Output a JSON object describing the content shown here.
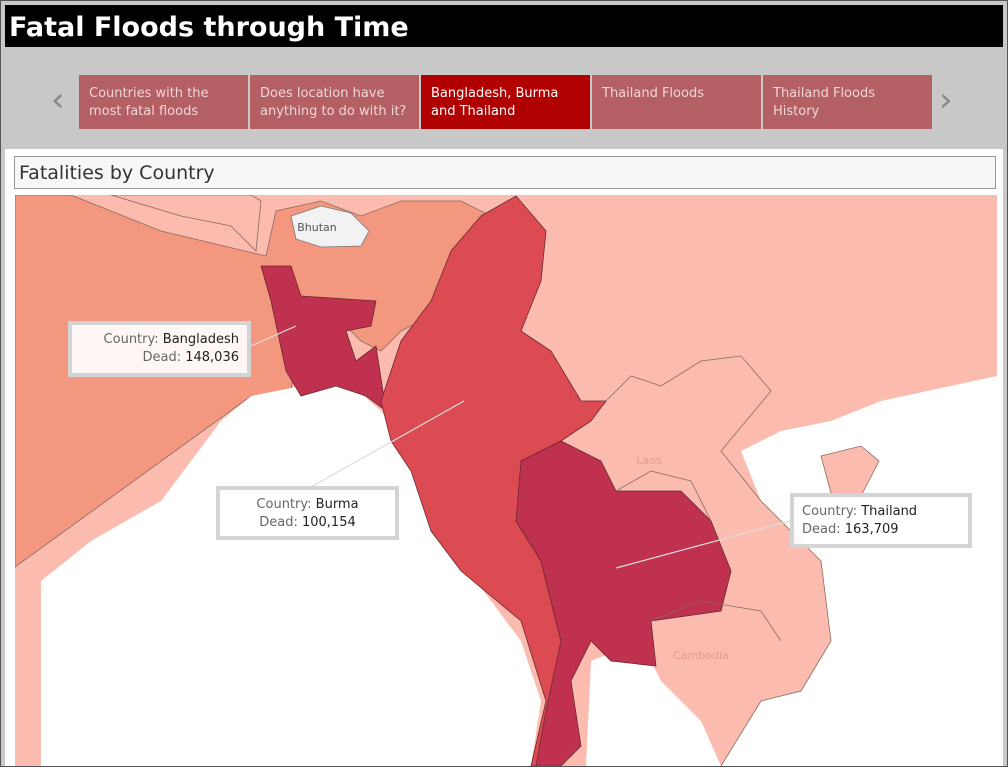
{
  "header": {
    "title": "Fatal Floods through Time"
  },
  "story": {
    "points": [
      "Countries with the most fatal floods",
      "Does location have anything to do with it?",
      "Bangladesh, Burma and Thailand",
      "Thailand Floods",
      "Thailand Floods History"
    ],
    "active": 2
  },
  "sheet": {
    "title": "Fatalities by Country"
  },
  "map": {
    "labels": [
      "Bhutan",
      "Laos",
      "Cambodia"
    ],
    "tooltips": [
      {
        "country_label": "Country:",
        "country": "Bangladesh",
        "dead_label": "Dead:",
        "dead": "148,036"
      },
      {
        "country_label": "Country:",
        "country": "Burma",
        "dead_label": "Dead:",
        "dead": "100,154"
      },
      {
        "country_label": "Country:",
        "country": "Thailand",
        "dead_label": "Dead:",
        "dead": "163,709"
      }
    ]
  }
}
